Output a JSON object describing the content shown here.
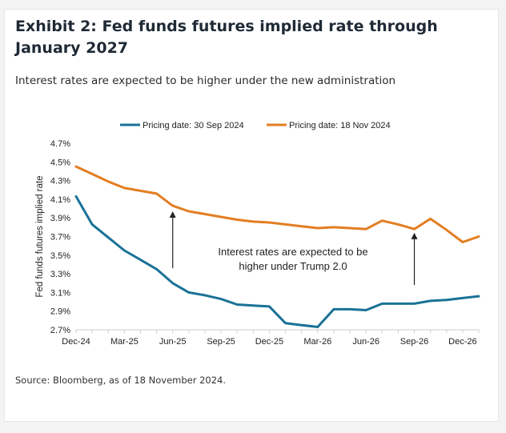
{
  "header": {
    "title": "Exhibit 2: Fed funds futures implied rate through January 2027",
    "subtitle": "Interest rates are expected to be higher under the new administration"
  },
  "footer": {
    "source": "Source: Bloomberg, as of 18 November 2024."
  },
  "chart_data": {
    "type": "line",
    "ylabel": "Fed funds futures implied rate",
    "xlabel": "",
    "ylim": [
      2.7,
      4.7
    ],
    "y_ticks": [
      "4.7%",
      "4.5%",
      "4.3%",
      "4.1%",
      "3.9%",
      "3.7%",
      "3.5%",
      "3.3%",
      "3.1%",
      "2.9%",
      "2.7%"
    ],
    "y_tick_values": [
      4.7,
      4.5,
      4.3,
      4.1,
      3.9,
      3.7,
      3.5,
      3.3,
      3.1,
      2.9,
      2.7
    ],
    "x_ticks": [
      "Dec-24",
      "Mar-25",
      "Jun-25",
      "Sep-25",
      "Dec-25",
      "Mar-26",
      "Jun-26",
      "Sep-26",
      "Dec-26"
    ],
    "x_tick_index": [
      0,
      3,
      6,
      9,
      12,
      15,
      18,
      21,
      24
    ],
    "x": [
      "Dec-24",
      "Jan-25",
      "Feb-25",
      "Mar-25",
      "Apr-25",
      "May-25",
      "Jun-25",
      "Jul-25",
      "Aug-25",
      "Sep-25",
      "Oct-25",
      "Nov-25",
      "Dec-25",
      "Jan-26",
      "Feb-26",
      "Mar-26",
      "Apr-26",
      "May-26",
      "Jun-26",
      "Jul-26",
      "Aug-26",
      "Sep-26",
      "Oct-26",
      "Nov-26",
      "Dec-26",
      "Jan-27"
    ],
    "series": [
      {
        "name": "Pricing date: 30 Sep 2024",
        "color": "#1a7296",
        "values": [
          4.13,
          3.83,
          3.69,
          3.55,
          3.45,
          3.35,
          3.2,
          3.1,
          3.07,
          3.03,
          2.97,
          2.96,
          2.95,
          2.77,
          2.75,
          2.73,
          2.92,
          2.92,
          2.91,
          2.98,
          2.98,
          2.98,
          3.01,
          3.02,
          3.04,
          3.06
        ]
      },
      {
        "name": "Pricing date: 18 Nov 2024",
        "color": "#e37e22",
        "values": [
          4.45,
          4.37,
          4.29,
          4.22,
          4.19,
          4.16,
          4.03,
          3.97,
          3.94,
          3.91,
          3.88,
          3.86,
          3.85,
          3.83,
          3.81,
          3.79,
          3.8,
          3.79,
          3.78,
          3.87,
          3.83,
          3.78,
          3.89,
          3.77,
          3.64,
          3.7
        ]
      }
    ],
    "annotations": [
      {
        "text_lines": [
          "Interest rates are expected to be",
          "higher under Trump 2.0"
        ]
      }
    ],
    "arrows": [
      {
        "x_index": 6,
        "y_from": 3.36,
        "y_to": 3.97
      },
      {
        "x_index": 21,
        "y_from": 3.18,
        "y_to": 3.74
      }
    ],
    "legend_position": "top-center",
    "grid": false,
    "axis_color": "#cccccc",
    "text_color": "#222222"
  }
}
